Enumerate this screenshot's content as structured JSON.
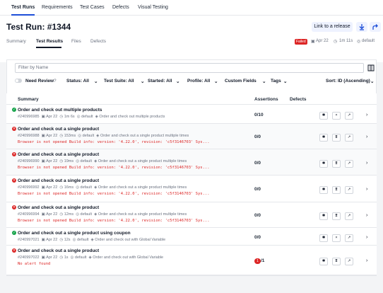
{
  "topnav": {
    "items": [
      "Test Runs",
      "Requirements",
      "Test Cases",
      "Defects",
      "Visual Testing"
    ]
  },
  "header": {
    "title": "Test Run: #1344",
    "link_button": "Link to a release",
    "tabs": [
      "Summary",
      "Test Results",
      "Files",
      "Defects"
    ],
    "status": "Failed",
    "date": "Apr 22",
    "duration": "1m 11s",
    "environment": "default"
  },
  "filter": {
    "placeholder": "Filter by Name"
  },
  "toolbar": {
    "need_review": "Need Review",
    "status": "Status: All",
    "test_suite": "Test Suite: All",
    "started": "Started: All",
    "profile": "Profile: All",
    "custom_fields": "Custom Fields",
    "tags": "Tags",
    "sort": "Sort:  ID (Ascending)"
  },
  "table": {
    "headers": [
      "Summary",
      "Assertions",
      "Defects"
    ],
    "rows": [
      {
        "status": "pass",
        "name": "Order and check out multiple products",
        "id": "#240996985",
        "date": "Apr 22",
        "duration": "1m 6s",
        "profile": "default",
        "suite": "Order and check out multiple products",
        "error": "",
        "assertions": "0/10",
        "defects_badge": ""
      },
      {
        "status": "fail",
        "name": "Order and check out a single product",
        "id": "#240996988",
        "date": "Apr 22",
        "duration": "153ms",
        "profile": "default",
        "suite": "Order and check out a single product multiple times",
        "error": "Browser is not opened Build info: version: '4.22.0', revision: 'c5f3146703' Sys...",
        "assertions": "0/0",
        "defects_badge": ""
      },
      {
        "status": "fail",
        "name": "Order and check out a single product",
        "id": "#240996990",
        "date": "Apr 22",
        "duration": "19ms",
        "profile": "default",
        "suite": "Order and check out a single product multiple times",
        "error": "Browser is not opened Build info: version: '4.22.0', revision: 'c5f3146703' Sys...",
        "assertions": "0/0",
        "defects_badge": ""
      },
      {
        "status": "fail",
        "name": "Order and check out a single product",
        "id": "#240996992",
        "date": "Apr 22",
        "duration": "16ms",
        "profile": "default",
        "suite": "Order and check out a single product multiple times",
        "error": "Browser is not opened Build info: version: '4.22.0', revision: 'c5f3146703' Sys...",
        "assertions": "0/0",
        "defects_badge": ""
      },
      {
        "status": "fail",
        "name": "Order and check out a single product",
        "id": "#240996994",
        "date": "Apr 22",
        "duration": "12ms",
        "profile": "default",
        "suite": "Order and check out a single product multiple times",
        "error": "Browser is not opened Build info: version: '4.22.0', revision: 'c5f3146703' Sys...",
        "assertions": "0/0",
        "defects_badge": ""
      },
      {
        "status": "pass",
        "name": "Order and check out a single product using coupon",
        "id": "#240997021",
        "date": "Apr 22",
        "duration": "12s",
        "profile": "default",
        "suite": "Order and check out with Global Variable",
        "error": "",
        "assertions": "0/0",
        "defects_badge": ""
      },
      {
        "status": "fail",
        "name": "Order and check out a single product",
        "id": "#240997022",
        "date": "Apr 22",
        "duration": "1s",
        "profile": "default",
        "suite": "Order and check out with Global Variable",
        "error": "No alert found",
        "assertions": "1/1",
        "defects_badge": "1"
      }
    ]
  }
}
